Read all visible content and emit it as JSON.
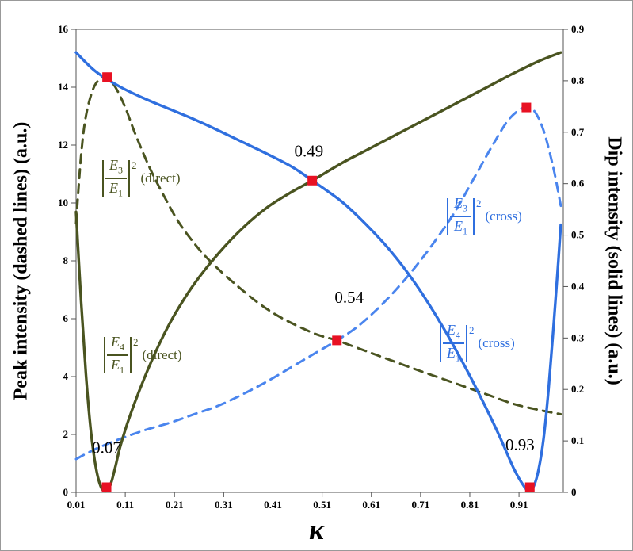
{
  "colors": {
    "green": "#4a5420",
    "blue": "#2f6fdf",
    "blue_dashed": "#4a85ee",
    "marker_red": "#e81123",
    "axis": "#555555",
    "text": "#000000"
  },
  "chart_data": {
    "type": "line",
    "xlabel": "κ",
    "ylabel_left": "Peak intensity (dashed lines) (a.u.)",
    "ylabel_right": "Dip intensity (solid lines) (a.u.)",
    "xlim": [
      0.01,
      1.0
    ],
    "ylim_left": [
      0,
      16
    ],
    "ylim_right": [
      0,
      0.9
    ],
    "x_tick_values": [
      0.01,
      0.11,
      0.21,
      0.31,
      0.41,
      0.51,
      0.61,
      0.71,
      0.81,
      0.91
    ],
    "x_tick_labels": [
      "0.01",
      "0.11",
      "0.21",
      "0.31",
      "0.41",
      "0.51",
      "0.61",
      "0.71",
      "0.81",
      "0.91"
    ],
    "left_tick_values": [
      0,
      2,
      4,
      6,
      8,
      10,
      12,
      14,
      16
    ],
    "left_tick_labels": [
      "0",
      "2",
      "4",
      "6",
      "8",
      "10",
      "12",
      "14",
      "16"
    ],
    "right_tick_values": [
      0,
      0.1,
      0.2,
      0.3,
      0.4,
      0.5,
      0.6,
      0.7,
      0.8,
      0.9
    ],
    "right_tick_labels": [
      "0",
      "0.1",
      "0.2",
      "0.3",
      "0.4",
      "0.5",
      "0.6",
      "0.7",
      "0.8",
      "0.9"
    ],
    "series": [
      {
        "key": "e3-direct",
        "name": "|E3/E1|² (direct)",
        "axis": "left",
        "style": "dashed",
        "color_key": "green",
        "points": [
          [
            0.01,
            9.3
          ],
          [
            0.02,
            11.6
          ],
          [
            0.03,
            13.0
          ],
          [
            0.045,
            13.95
          ],
          [
            0.06,
            14.3
          ],
          [
            0.073,
            14.35
          ],
          [
            0.09,
            14.0
          ],
          [
            0.11,
            13.3
          ],
          [
            0.13,
            12.4
          ],
          [
            0.16,
            11.2
          ],
          [
            0.19,
            10.2
          ],
          [
            0.22,
            9.3
          ],
          [
            0.26,
            8.4
          ],
          [
            0.3,
            7.7
          ],
          [
            0.34,
            7.1
          ],
          [
            0.38,
            6.55
          ],
          [
            0.42,
            6.1
          ],
          [
            0.46,
            5.75
          ],
          [
            0.5,
            5.45
          ],
          [
            0.54,
            5.25
          ],
          [
            0.58,
            5.0
          ],
          [
            0.62,
            4.75
          ],
          [
            0.66,
            4.5
          ],
          [
            0.7,
            4.25
          ],
          [
            0.75,
            3.95
          ],
          [
            0.8,
            3.65
          ],
          [
            0.85,
            3.35
          ],
          [
            0.9,
            3.05
          ],
          [
            0.95,
            2.85
          ],
          [
            0.995,
            2.7
          ]
        ]
      },
      {
        "key": "e3-cross",
        "name": "|E3/E1|² (cross)",
        "axis": "left",
        "style": "dashed",
        "color_key": "blue_dashed",
        "points": [
          [
            0.01,
            1.15
          ],
          [
            0.05,
            1.5
          ],
          [
            0.1,
            1.85
          ],
          [
            0.15,
            2.15
          ],
          [
            0.2,
            2.4
          ],
          [
            0.25,
            2.7
          ],
          [
            0.3,
            3.0
          ],
          [
            0.35,
            3.4
          ],
          [
            0.4,
            3.85
          ],
          [
            0.45,
            4.35
          ],
          [
            0.5,
            4.85
          ],
          [
            0.54,
            5.25
          ],
          [
            0.58,
            5.7
          ],
          [
            0.62,
            6.3
          ],
          [
            0.66,
            7.0
          ],
          [
            0.7,
            7.8
          ],
          [
            0.74,
            8.7
          ],
          [
            0.78,
            9.7
          ],
          [
            0.82,
            10.9
          ],
          [
            0.86,
            12.1
          ],
          [
            0.89,
            12.9
          ],
          [
            0.92,
            13.3
          ],
          [
            0.94,
            13.2
          ],
          [
            0.96,
            12.5
          ],
          [
            0.98,
            11.2
          ],
          [
            0.995,
            9.9
          ]
        ]
      },
      {
        "key": "e4-cross",
        "name": "|E4/E1|² (cross)",
        "axis": "right",
        "style": "solid",
        "color_key": "blue",
        "points": [
          [
            0.01,
            0.855
          ],
          [
            0.05,
            0.818
          ],
          [
            0.1,
            0.788
          ],
          [
            0.15,
            0.765
          ],
          [
            0.2,
            0.745
          ],
          [
            0.25,
            0.725
          ],
          [
            0.3,
            0.703
          ],
          [
            0.35,
            0.68
          ],
          [
            0.4,
            0.657
          ],
          [
            0.45,
            0.632
          ],
          [
            0.49,
            0.606
          ],
          [
            0.55,
            0.565
          ],
          [
            0.6,
            0.52
          ],
          [
            0.65,
            0.468
          ],
          [
            0.7,
            0.405
          ],
          [
            0.75,
            0.33
          ],
          [
            0.8,
            0.245
          ],
          [
            0.84,
            0.17
          ],
          [
            0.87,
            0.11
          ],
          [
            0.9,
            0.045
          ],
          [
            0.92,
            0.012
          ],
          [
            0.93,
            0.003
          ],
          [
            0.94,
            0.012
          ],
          [
            0.95,
            0.045
          ],
          [
            0.96,
            0.105
          ],
          [
            0.97,
            0.2
          ],
          [
            0.98,
            0.32
          ],
          [
            0.99,
            0.45
          ],
          [
            0.995,
            0.52
          ]
        ]
      },
      {
        "key": "e4-direct",
        "name": "|E4/E1|² (direct)",
        "axis": "right",
        "style": "solid",
        "color_key": "green",
        "points": [
          [
            0.01,
            0.545
          ],
          [
            0.02,
            0.375
          ],
          [
            0.03,
            0.23
          ],
          [
            0.04,
            0.12
          ],
          [
            0.05,
            0.05
          ],
          [
            0.06,
            0.012
          ],
          [
            0.07,
            0.002
          ],
          [
            0.08,
            0.015
          ],
          [
            0.09,
            0.05
          ],
          [
            0.1,
            0.09
          ],
          [
            0.12,
            0.15
          ],
          [
            0.15,
            0.225
          ],
          [
            0.18,
            0.29
          ],
          [
            0.21,
            0.345
          ],
          [
            0.25,
            0.405
          ],
          [
            0.3,
            0.465
          ],
          [
            0.35,
            0.515
          ],
          [
            0.4,
            0.555
          ],
          [
            0.45,
            0.585
          ],
          [
            0.49,
            0.606
          ],
          [
            0.55,
            0.64
          ],
          [
            0.6,
            0.665
          ],
          [
            0.65,
            0.69
          ],
          [
            0.7,
            0.715
          ],
          [
            0.75,
            0.74
          ],
          [
            0.8,
            0.765
          ],
          [
            0.85,
            0.79
          ],
          [
            0.9,
            0.815
          ],
          [
            0.95,
            0.838
          ],
          [
            0.995,
            0.855
          ]
        ]
      }
    ],
    "markers": [
      {
        "x": 0.073,
        "y": 14.35,
        "axis": "left"
      },
      {
        "x": 0.072,
        "y": 0.01,
        "axis": "right"
      },
      {
        "x": 0.49,
        "y": 0.606,
        "axis": "right"
      },
      {
        "x": 0.54,
        "y": 5.25,
        "axis": "left"
      },
      {
        "x": 0.925,
        "y": 13.3,
        "axis": "left"
      },
      {
        "x": 0.932,
        "y": 0.01,
        "axis": "right"
      }
    ],
    "annotations": [
      {
        "text": "0.49",
        "x": 0.483,
        "y_left": 11.6
      },
      {
        "text": "0.54",
        "x": 0.565,
        "y_left": 6.55
      },
      {
        "text": "0.07",
        "x": 0.072,
        "y_left": 1.35
      },
      {
        "text": "0.93",
        "x": 0.912,
        "y_left": 1.45
      }
    ]
  },
  "curve_labels": [
    {
      "num": "E",
      "num_sub": "3",
      "den": "E",
      "den_sub": "1",
      "exp": "2",
      "suffix": "(direct)",
      "color_key": "green"
    },
    {
      "num": "E",
      "num_sub": "4",
      "den": "E",
      "den_sub": "1",
      "exp": "2",
      "suffix": "(direct)",
      "color_key": "green"
    },
    {
      "num": "E",
      "num_sub": "3",
      "den": "E",
      "den_sub": "1",
      "exp": "2",
      "suffix": "(cross)",
      "color_key": "blue"
    },
    {
      "num": "E",
      "num_sub": "4",
      "den": "E",
      "den_sub": "1",
      "exp": "2",
      "suffix": "(cross)",
      "color_key": "blue"
    }
  ]
}
